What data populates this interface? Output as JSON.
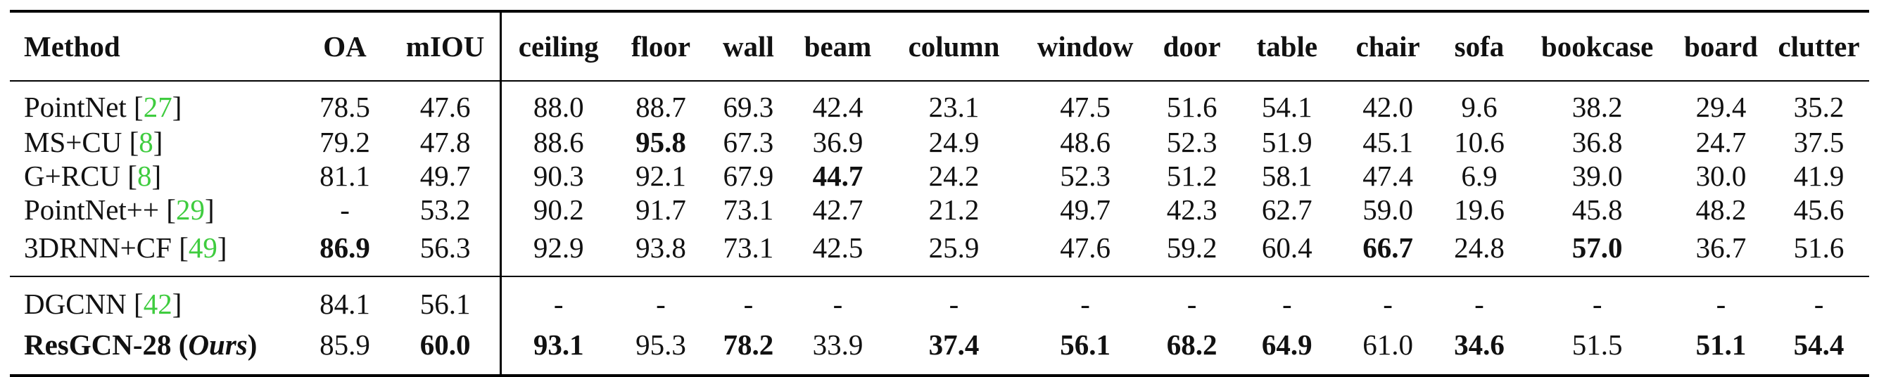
{
  "headers": [
    "Method",
    "OA",
    "mIOU",
    "ceiling",
    "floor",
    "wall",
    "beam",
    "column",
    "window",
    "door",
    "table",
    "chair",
    "sofa",
    "bookcase",
    "board",
    "clutter"
  ],
  "rows": [
    {
      "name": "PointNet",
      "cite": "27",
      "suffix": "",
      "values": [
        "78.5",
        "47.6",
        "88.0",
        "88.7",
        "69.3",
        "42.4",
        "23.1",
        "47.5",
        "51.6",
        "54.1",
        "42.0",
        "9.6",
        "38.2",
        "29.4",
        "35.2"
      ],
      "bold": []
    },
    {
      "name": "MS+CU",
      "cite": "8",
      "suffix": "",
      "values": [
        "79.2",
        "47.8",
        "88.6",
        "95.8",
        "67.3",
        "36.9",
        "24.9",
        "48.6",
        "52.3",
        "51.9",
        "45.1",
        "10.6",
        "36.8",
        "24.7",
        "37.5"
      ],
      "bold": [
        3
      ]
    },
    {
      "name": "G+RCU",
      "cite": "8",
      "suffix": "",
      "values": [
        "81.1",
        "49.7",
        "90.3",
        "92.1",
        "67.9",
        "44.7",
        "24.2",
        "52.3",
        "51.2",
        "58.1",
        "47.4",
        "6.9",
        "39.0",
        "30.0",
        "41.9"
      ],
      "bold": [
        5
      ]
    },
    {
      "name": "PointNet++",
      "cite": "29",
      "suffix": "",
      "values": [
        "-",
        "53.2",
        "90.2",
        "91.7",
        "73.1",
        "42.7",
        "21.2",
        "49.7",
        "42.3",
        "62.7",
        "59.0",
        "19.6",
        "45.8",
        "48.2",
        "45.6"
      ],
      "bold": []
    },
    {
      "name": "3DRNN+CF",
      "cite": "49",
      "suffix": "",
      "values": [
        "86.9",
        "56.3",
        "92.9",
        "93.8",
        "73.1",
        "42.5",
        "25.9",
        "47.6",
        "59.2",
        "60.4",
        "66.7",
        "24.8",
        "57.0",
        "36.7",
        "51.6"
      ],
      "bold": [
        0,
        10,
        12
      ]
    },
    {
      "name": "DGCNN",
      "cite": "42",
      "suffix": "",
      "values": [
        "84.1",
        "56.1",
        "-",
        "-",
        "-",
        "-",
        "-",
        "-",
        "-",
        "-",
        "-",
        "-",
        "-",
        "-",
        "-"
      ],
      "bold": []
    },
    {
      "name": "ResGCN-28",
      "cite": "",
      "suffix": "Ours",
      "values": [
        "85.9",
        "60.0",
        "93.1",
        "95.3",
        "78.2",
        "33.9",
        "37.4",
        "56.1",
        "68.2",
        "64.9",
        "61.0",
        "34.6",
        "51.5",
        "51.1",
        "54.4"
      ],
      "bold": [
        1,
        2,
        4,
        6,
        7,
        8,
        9,
        11,
        13,
        14
      ],
      "name_bold": true
    }
  ]
}
